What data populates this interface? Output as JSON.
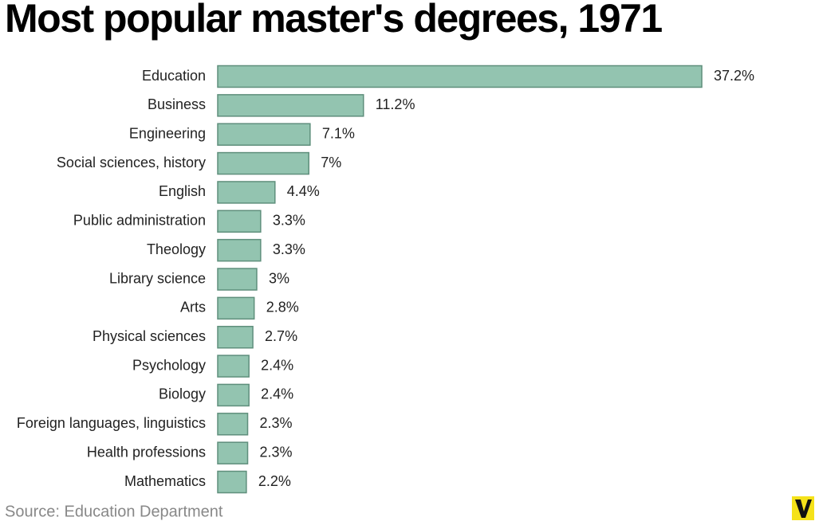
{
  "chart_data": {
    "type": "bar",
    "orientation": "horizontal",
    "title": "Most popular master's degrees, 1971",
    "source": "Source: Education Department",
    "categories": [
      "Education",
      "Business",
      "Engineering",
      "Social sciences, history",
      "English",
      "Public administration",
      "Theology",
      "Library science",
      "Arts",
      "Physical sciences",
      "Psychology",
      "Biology",
      "Foreign languages, linguistics",
      "Health professions",
      "Mathematics"
    ],
    "values": [
      37.2,
      11.2,
      7.1,
      7,
      4.4,
      3.3,
      3.3,
      3,
      2.8,
      2.7,
      2.4,
      2.4,
      2.3,
      2.3,
      2.2
    ],
    "value_labels": [
      "37.2%",
      "11.2%",
      "7.1%",
      "7%",
      "4.4%",
      "3.3%",
      "3.3%",
      "3%",
      "2.8%",
      "2.7%",
      "2.4%",
      "2.4%",
      "2.3%",
      "2.3%",
      "2.2%"
    ],
    "color": "#93c4b0"
  }
}
